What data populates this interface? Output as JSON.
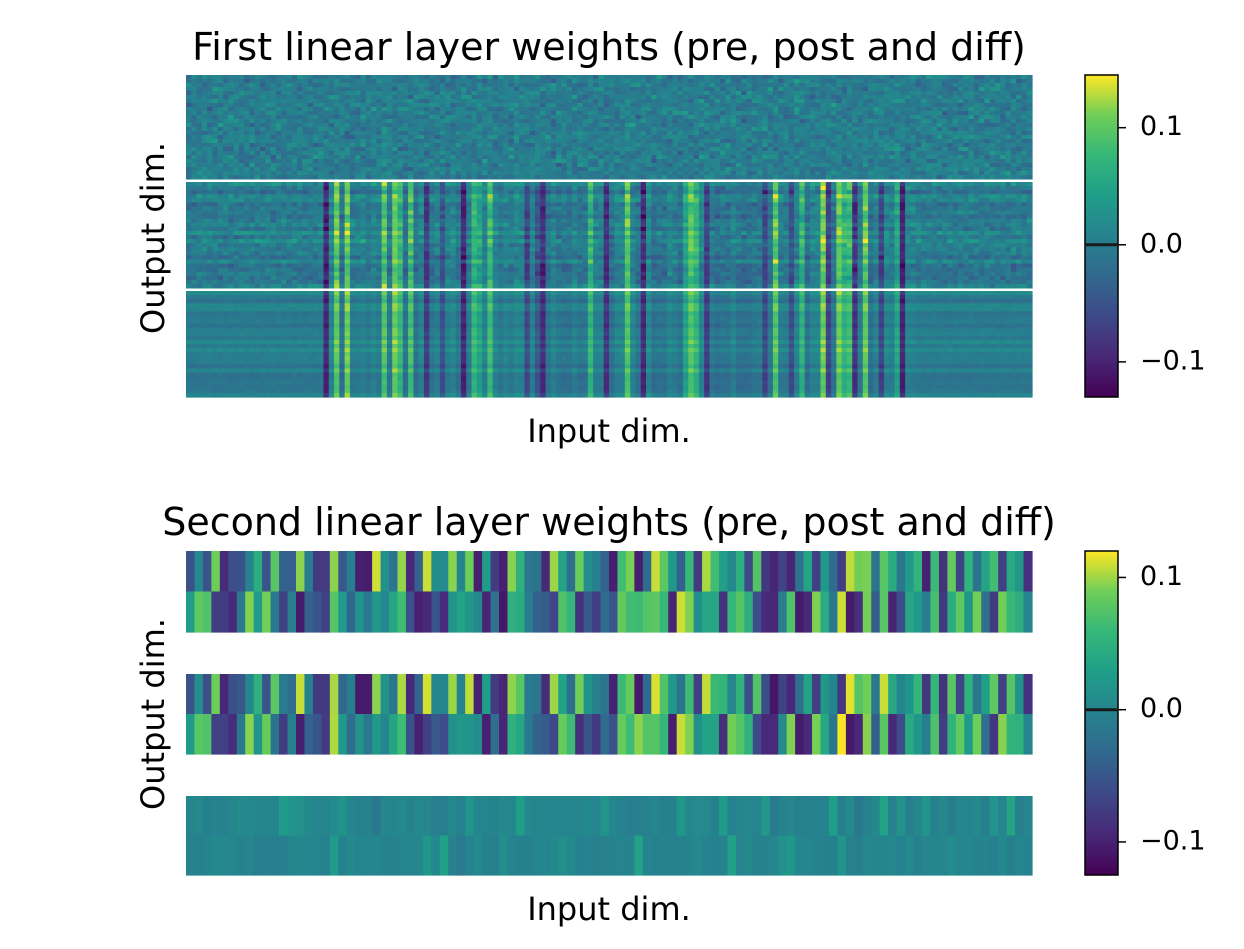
{
  "chart_data": [
    {
      "type": "heatmap",
      "title": "First linear layer weights (pre, post and diff)",
      "xlabel": "Input dim.",
      "ylabel": "Output dim.",
      "panels": [
        "pre",
        "post",
        "diff"
      ],
      "colormap": "viridis",
      "colorbar": {
        "vmin": -0.13,
        "vmax": 0.145,
        "ticks": [
          -0.1,
          0.0,
          0.1
        ],
        "tick_labels": [
          "−0.1",
          "0.0",
          "0.1"
        ]
      },
      "xticks": false,
      "yticks": false,
      "grid": false
    },
    {
      "type": "heatmap",
      "title": "Second linear layer weights (pre, post and diff)",
      "xlabel": "Input dim.",
      "ylabel": "Output dim.",
      "panels": [
        "pre",
        "post",
        "diff"
      ],
      "colormap": "viridis",
      "colorbar": {
        "vmin": -0.125,
        "vmax": 0.12,
        "ticks": [
          -0.1,
          0.0,
          0.1
        ],
        "tick_labels": [
          "−0.1",
          "0.0",
          "0.1"
        ]
      },
      "xticks": false,
      "yticks": false,
      "grid": false
    }
  ]
}
